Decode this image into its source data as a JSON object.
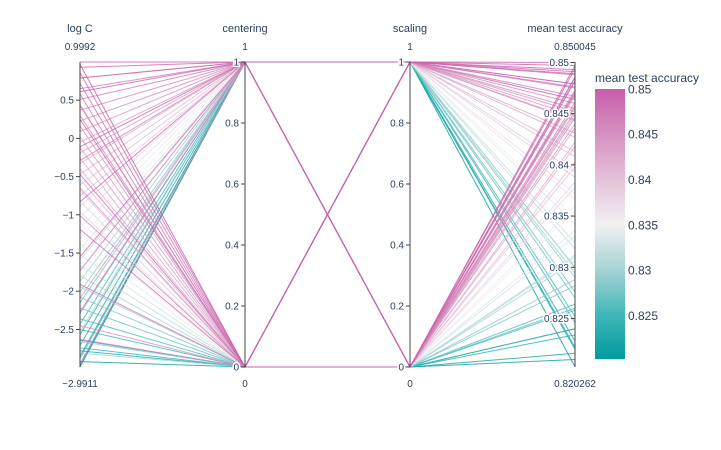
{
  "chart_data": {
    "type": "parcoords",
    "axes": [
      {
        "label": "log C",
        "range": [
          -2.9911,
          0.9992
        ],
        "ticks": [
          0.5,
          0,
          -0.5,
          -1,
          -1.5,
          -2,
          -2.5
        ],
        "tick_labels": [
          "0.5",
          "0",
          "−0.5",
          "−1",
          "−1.5",
          "−2",
          "−2.5"
        ],
        "range_labels": [
          "0.9992",
          "−2.9911"
        ]
      },
      {
        "label": "centering",
        "range": [
          0,
          1
        ],
        "ticks": [
          1,
          0.8,
          0.6,
          0.4,
          0.2,
          0
        ],
        "tick_labels": [
          "1",
          "0.8",
          "0.6",
          "0.4",
          "0.2",
          "0"
        ],
        "range_labels": [
          "1",
          "0"
        ]
      },
      {
        "label": "scaling",
        "range": [
          0,
          1
        ],
        "ticks": [
          1,
          0.8,
          0.6,
          0.4,
          0.2,
          0
        ],
        "tick_labels": [
          "1",
          "0.8",
          "0.6",
          "0.4",
          "0.2",
          "0"
        ],
        "range_labels": [
          "1",
          "0"
        ]
      },
      {
        "label": "mean test accuracy",
        "range": [
          0.820262,
          0.850045
        ],
        "ticks": [
          0.85,
          0.845,
          0.84,
          0.835,
          0.83,
          0.825
        ],
        "tick_labels": [
          "0.85",
          "0.845",
          "0.84",
          "0.835",
          "0.83",
          "0.825"
        ],
        "range_labels": [
          "0.850045",
          "0.820262"
        ]
      }
    ],
    "lines": [
      [
        0.9992,
        1,
        1,
        0.8497
      ],
      [
        0.93,
        1,
        1,
        0.8493
      ],
      [
        0.86,
        0,
        1,
        0.8489
      ],
      [
        0.79,
        1,
        0,
        0.8486
      ],
      [
        0.72,
        0,
        0,
        0.8482
      ],
      [
        0.65,
        1,
        1,
        0.8479
      ],
      [
        0.58,
        0,
        1,
        0.8475
      ],
      [
        0.51,
        1,
        0,
        0.8471
      ],
      [
        0.44,
        0,
        0,
        0.8468
      ],
      [
        0.37,
        1,
        1,
        0.8464
      ],
      [
        0.3,
        0,
        1,
        0.846
      ],
      [
        0.23,
        1,
        0,
        0.8456
      ],
      [
        0.16,
        0,
        0,
        0.8452
      ],
      [
        0.09,
        1,
        1,
        0.8448
      ],
      [
        0.02,
        0,
        1,
        0.8444
      ],
      [
        -0.05,
        1,
        0,
        0.844
      ],
      [
        -0.12,
        0,
        0,
        0.8436
      ],
      [
        -0.19,
        1,
        1,
        0.8431
      ],
      [
        -0.26,
        0,
        1,
        0.8427
      ],
      [
        -0.33,
        1,
        0,
        0.8422
      ],
      [
        -0.4,
        0,
        0,
        0.8418
      ],
      [
        -0.47,
        1,
        1,
        0.8413
      ],
      [
        -0.54,
        0,
        1,
        0.8408
      ],
      [
        -0.61,
        1,
        0,
        0.8403
      ],
      [
        -0.68,
        0,
        0,
        0.8398
      ],
      [
        -0.75,
        1,
        1,
        0.8393
      ],
      [
        -0.82,
        0,
        1,
        0.8388
      ],
      [
        -0.89,
        1,
        0,
        0.8383
      ],
      [
        -0.96,
        0,
        0,
        0.8378
      ],
      [
        -1.03,
        1,
        1,
        0.8372
      ],
      [
        -1.1,
        0,
        1,
        0.8366
      ],
      [
        -1.17,
        1,
        0,
        0.836
      ],
      [
        -1.24,
        0,
        0,
        0.8354
      ],
      [
        -1.31,
        1,
        1,
        0.8348
      ],
      [
        -1.38,
        0,
        1,
        0.8342
      ],
      [
        -1.45,
        1,
        0,
        0.8336
      ],
      [
        -1.52,
        0,
        0,
        0.833
      ],
      [
        -1.59,
        1,
        1,
        0.8324
      ],
      [
        -1.66,
        0,
        1,
        0.8318
      ],
      [
        -1.73,
        1,
        0,
        0.8312
      ],
      [
        -1.8,
        0,
        0,
        0.8306
      ],
      [
        -1.87,
        1,
        1,
        0.83
      ],
      [
        -1.94,
        0,
        1,
        0.8294
      ],
      [
        -2.01,
        1,
        0,
        0.8288
      ],
      [
        -2.08,
        0,
        0,
        0.8282
      ],
      [
        -2.15,
        1,
        1,
        0.8276
      ],
      [
        -2.22,
        0,
        1,
        0.827
      ],
      [
        -2.29,
        1,
        0,
        0.8264
      ],
      [
        -2.36,
        0,
        0,
        0.8258
      ],
      [
        -2.43,
        1,
        1,
        0.8252
      ],
      [
        -2.5,
        0,
        1,
        0.8246
      ],
      [
        -2.57,
        1,
        0,
        0.824
      ],
      [
        -2.64,
        0,
        0,
        0.8234
      ],
      [
        -2.71,
        1,
        1,
        0.8228
      ],
      [
        -2.78,
        0,
        1,
        0.8222
      ],
      [
        -2.85,
        1,
        0,
        0.8216
      ],
      [
        -2.92,
        0,
        0,
        0.821
      ],
      [
        -2.9911,
        1,
        1,
        0.8203
      ],
      [
        0.97,
        0,
        1,
        0.85
      ],
      [
        0.61,
        1,
        0,
        0.8497
      ],
      [
        0.25,
        0,
        0,
        0.8494
      ],
      [
        -0.11,
        1,
        1,
        0.8491
      ],
      [
        -0.47,
        0,
        1,
        0.8488
      ],
      [
        -0.83,
        1,
        0,
        0.8485
      ],
      [
        -1.19,
        0,
        0,
        0.8482
      ],
      [
        -1.55,
        1,
        1,
        0.8479
      ],
      [
        -1.91,
        0,
        1,
        0.8476
      ],
      [
        -2.27,
        1,
        0,
        0.8473
      ],
      [
        -2.63,
        0,
        0,
        0.847
      ],
      [
        -2.95,
        1,
        1,
        0.8467
      ],
      [
        0.43,
        0,
        1,
        0.8464
      ],
      [
        -0.29,
        1,
        0,
        0.8461
      ],
      [
        -1.01,
        0,
        0,
        0.8458
      ],
      [
        -1.73,
        1,
        1,
        0.8455
      ],
      [
        -2.45,
        0,
        1,
        0.8452
      ],
      [
        0.79,
        1,
        0,
        0.8449
      ],
      [
        -0.65,
        0,
        0,
        0.8446
      ],
      [
        -2.09,
        1,
        1,
        0.8443
      ],
      [
        -2.81,
        0,
        1,
        0.83
      ],
      [
        -2.88,
        1,
        0,
        0.826
      ],
      [
        -2.74,
        0,
        0,
        0.824
      ],
      [
        -2.97,
        1,
        1,
        0.822
      ],
      [
        -2.66,
        0,
        1,
        0.829
      ],
      [
        -2.53,
        1,
        0,
        0.831
      ]
    ],
    "colorscale": [
      "#009B9E",
      "#42B7B9",
      "#A7D3D4",
      "#F1F1F1",
      "#E4C1D9",
      "#D691C1",
      "#C75DAB"
    ],
    "colorbar": {
      "title": "mean test accuracy",
      "ticks": [
        0.85,
        0.845,
        0.84,
        0.835,
        0.83,
        0.825
      ],
      "tick_labels": [
        "0.85",
        "0.845",
        "0.84",
        "0.835",
        "0.83",
        "0.825"
      ]
    }
  }
}
